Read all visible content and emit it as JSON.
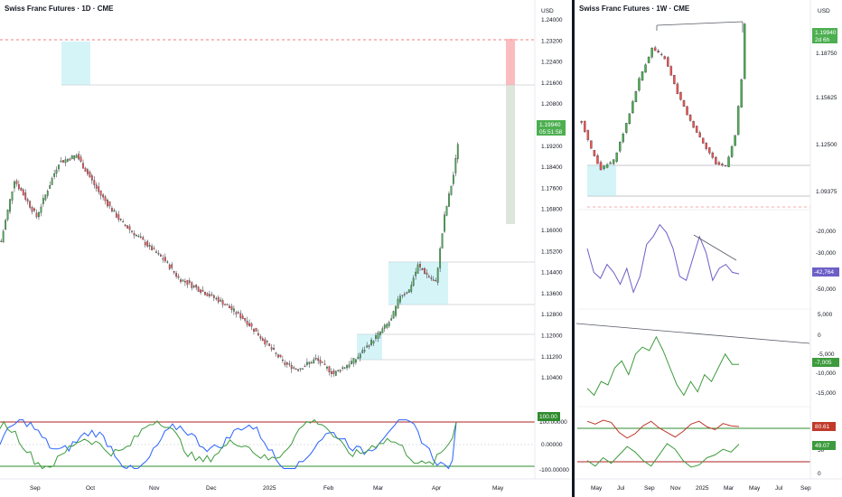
{
  "left_panel": {
    "title": "Swiss Franc Futures · 1D · CME",
    "currency_label": "USD",
    "price_axis": [
      "1.24000",
      "1.23200",
      "1.22400",
      "1.21600",
      "1.20800",
      "1.20000",
      "1.19200",
      "1.18400",
      "1.17600",
      "1.16800",
      "1.16000",
      "1.15200",
      "1.14400",
      "1.13600",
      "1.12800",
      "1.12000",
      "1.11200",
      "1.10400"
    ],
    "last_price": "1.19940",
    "countdown": "05:51:58",
    "time_axis": [
      "Sep",
      "Oct",
      "Nov",
      "Dec",
      "2025",
      "Feb",
      "Mar",
      "Apr",
      "May"
    ],
    "osc_axis": [
      "100.00000",
      "0.00000",
      "-100.00000"
    ],
    "osc_badge": "100.00",
    "candle_up_color": "#4caf50",
    "candle_down_color": "#ef5350"
  },
  "right_panel": {
    "title": "Swiss Franc Futures · 1W · CME",
    "currency_label": "USD",
    "price_axis": [
      "1.18750",
      "1.15625",
      "1.12500",
      "1.09375"
    ],
    "last_price": "1.19940",
    "countdown": "2d 6h",
    "cot1_axis": [
      "-20,000",
      "-30,000",
      "-40,000",
      "-50,000"
    ],
    "cot1_badge": "-42,764",
    "cot2_axis": [
      "5,000",
      "0",
      "-5,000",
      "-10,000",
      "-15,000"
    ],
    "cot2_badge": "-7,005",
    "osc_axis": [
      "50",
      "0"
    ],
    "osc_badge_red": "80.61",
    "osc_badge_green": "49.07",
    "time_axis": [
      "May",
      "Jul",
      "Sep",
      "Nov",
      "2025",
      "Mar",
      "May",
      "Jul",
      "Sep"
    ]
  },
  "chart_data": [
    {
      "type": "candlestick",
      "title": "Swiss Franc Futures · 1D · CME",
      "ylim": [
        1.1,
        1.242
      ],
      "x_ticks": [
        "Sep",
        "Oct",
        "Nov",
        "Dec",
        "2025",
        "Feb",
        "Mar",
        "Apr",
        "May"
      ],
      "anchors": [
        [
          0,
          1.16
        ],
        [
          6,
          1.185
        ],
        [
          16,
          1.17
        ],
        [
          26,
          1.192
        ],
        [
          34,
          1.195
        ],
        [
          44,
          1.18
        ],
        [
          54,
          1.168
        ],
        [
          64,
          1.16
        ],
        [
          74,
          1.152
        ],
        [
          80,
          1.145
        ],
        [
          90,
          1.14
        ],
        [
          100,
          1.135
        ],
        [
          110,
          1.128
        ],
        [
          120,
          1.118
        ],
        [
          128,
          1.11
        ],
        [
          134,
          1.108
        ],
        [
          142,
          1.112
        ],
        [
          150,
          1.106
        ],
        [
          160,
          1.112
        ],
        [
          168,
          1.12
        ],
        [
          176,
          1.128
        ],
        [
          180,
          1.138
        ],
        [
          184,
          1.14
        ],
        [
          188,
          1.15
        ],
        [
          196,
          1.143
        ],
        [
          200,
          1.17
        ],
        [
          204,
          1.187
        ],
        [
          206,
          1.199
        ]
      ],
      "last_price": 1.1994,
      "color_up": "#4caf50",
      "color_down": "#ef5350"
    },
    {
      "type": "candlestick",
      "title": "Swiss Franc Futures · 1W · CME",
      "ylim": [
        1.08,
        1.201
      ],
      "x_ticks": [
        "May",
        "Jul",
        "Sep",
        "Nov",
        "2025",
        "Mar",
        "May",
        "Jul",
        "Sep"
      ],
      "anchors": [
        [
          0,
          1.13
        ],
        [
          3,
          1.11
        ],
        [
          6,
          1.096
        ],
        [
          10,
          1.102
        ],
        [
          14,
          1.128
        ],
        [
          18,
          1.16
        ],
        [
          22,
          1.182
        ],
        [
          26,
          1.175
        ],
        [
          30,
          1.15
        ],
        [
          34,
          1.13
        ],
        [
          38,
          1.115
        ],
        [
          42,
          1.1
        ],
        [
          45,
          1.098
        ],
        [
          48,
          1.12
        ],
        [
          50,
          1.16
        ],
        [
          51,
          1.199
        ]
      ],
      "last_price": 1.1994,
      "color_up": "#4caf50",
      "color_down": "#ef5350"
    },
    {
      "type": "line",
      "ylim": [
        -55000,
        -15000
      ],
      "series": [
        {
          "values": [
            -30000,
            -42000,
            -45000,
            -38000,
            -42000,
            -48000,
            -40000,
            -52000,
            -44000,
            -28000,
            -24000,
            -18000,
            -22000,
            -30000,
            -44000,
            -46000,
            -35000,
            -24000,
            -32000,
            -46000,
            -40000,
            -38000,
            -42000,
            -42764
          ],
          "color": "#6c5fc7"
        }
      ]
    },
    {
      "type": "line",
      "ylim": [
        -18000,
        7000
      ],
      "series": [
        {
          "values": [
            -14000,
            -16000,
            -12000,
            -13000,
            -8000,
            -6000,
            -10000,
            -4000,
            -2000,
            -3000,
            1000,
            -3000,
            -8000,
            -13000,
            -16000,
            -12000,
            -15000,
            -10000,
            -12000,
            -8000,
            -4000,
            -7000,
            -7005
          ],
          "color": "#3d9b3d"
        }
      ]
    },
    {
      "type": "line",
      "ylim": [
        0,
        100
      ],
      "series": [
        {
          "values": [
            90,
            85,
            92,
            88,
            70,
            60,
            68,
            82,
            90,
            78,
            70,
            62,
            72,
            85,
            90,
            80,
            75,
            86,
            82,
            80.61
          ],
          "color": "#c0392b"
        },
        {
          "values": [
            20,
            10,
            25,
            15,
            30,
            45,
            35,
            20,
            10,
            30,
            50,
            40,
            20,
            8,
            12,
            25,
            30,
            40,
            35,
            49.07
          ],
          "color": "#3d9b3d"
        }
      ]
    }
  ]
}
